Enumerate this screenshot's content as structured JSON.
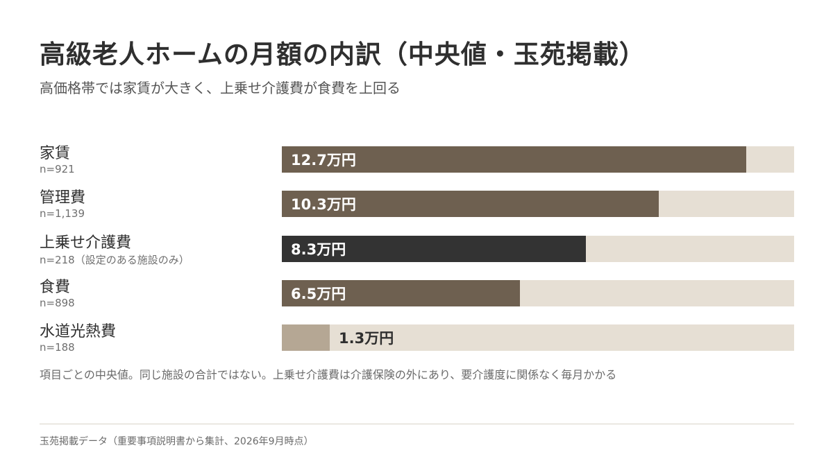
{
  "title": "高級老人ホームの月額の内訳（中央値・玉苑掲載）",
  "subtitle": "高価格帯では家賃が大きく、上乗せ介護費が食費を上回る",
  "note": "項目ごとの中央値。同じ施設の合計ではない。上乗せ介護費は介護保険の外にあり、要介護度に関係なく毎月かかる",
  "source": "玉苑掲載データ（重要事項説明書から集計、2026年9月時点）",
  "colors": {
    "bar_default": "#6e6050",
    "bar_highlight": "#333333",
    "bar_small": "#b5a794",
    "track": "#e6dfd4",
    "label_on_bar": "#ffffff",
    "label_outside": "#2f2f2f"
  },
  "chart_data": {
    "type": "bar",
    "orientation": "horizontal",
    "categories": [
      "家賃",
      "管理費",
      "上乗せ介護費",
      "食費",
      "水道光熱費"
    ],
    "sample_sizes": [
      "n=921",
      "n=1,139",
      "n=218（設定のある施設のみ）",
      "n=898",
      "n=188"
    ],
    "values": [
      12.7,
      10.3,
      8.3,
      6.5,
      1.3
    ],
    "value_labels": [
      "12.7万円",
      "10.3万円",
      "8.3万円",
      "6.5万円",
      "1.3万円"
    ],
    "unit": "万円",
    "xlim": [
      0,
      14
    ],
    "highlight_index": 2,
    "title": "高級老人ホームの月額の内訳（中央値・玉苑掲載）",
    "subtitle": "高価格帯では家賃が大きく、上乗せ介護費が食費を上回る",
    "xlabel": "",
    "ylabel": "",
    "grid": false,
    "legend": "none"
  }
}
